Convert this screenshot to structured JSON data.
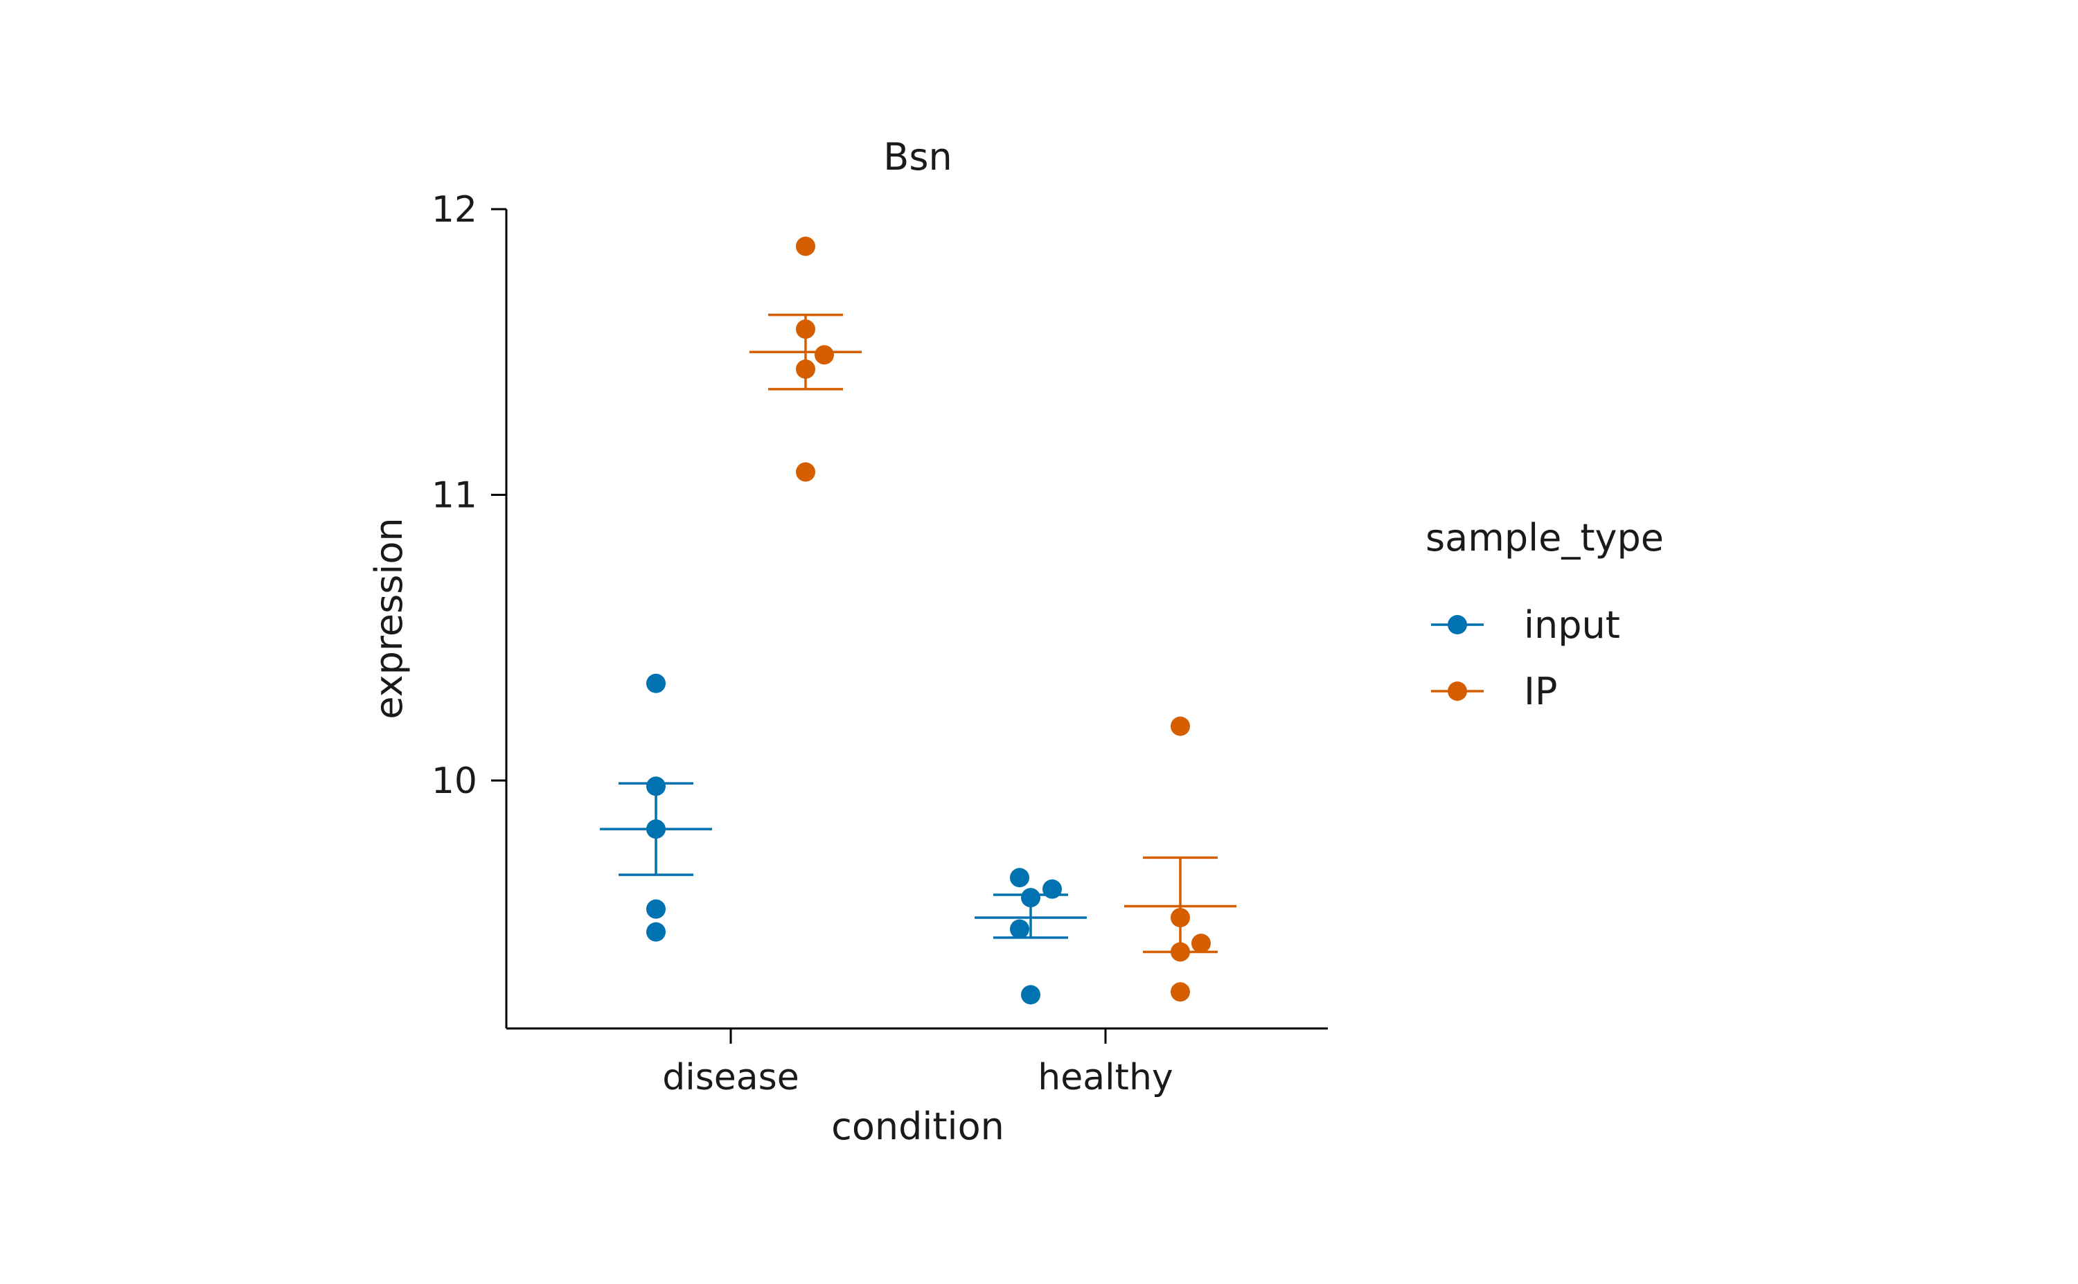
{
  "chart_data": {
    "type": "scatter",
    "title": "Bsn",
    "xlabel": "condition",
    "ylabel": "expression",
    "categories": [
      "disease",
      "healthy"
    ],
    "ylim": [
      9.13,
      12.0
    ],
    "yticks": [
      10,
      11,
      12
    ],
    "grid": false,
    "legend": {
      "title": "sample_type",
      "placement": "right"
    },
    "series": [
      {
        "name": "input",
        "color": "#0072B2",
        "groups": [
          {
            "category": "disease",
            "points": [
              10.34,
              9.98,
              9.83,
              9.55,
              9.47
            ],
            "mean": 9.83,
            "error": [
              9.67,
              9.99
            ]
          },
          {
            "category": "healthy",
            "points": [
              9.66,
              9.59,
              9.62,
              9.48,
              9.25
            ],
            "mean": 9.52,
            "error": [
              9.45,
              9.6
            ]
          }
        ]
      },
      {
        "name": "IP",
        "color": "#D55E00",
        "groups": [
          {
            "category": "disease",
            "points": [
              11.87,
              11.58,
              11.49,
              11.44,
              11.08
            ],
            "mean": 11.5,
            "error": [
              11.37,
              11.63
            ]
          },
          {
            "category": "healthy",
            "points": [
              10.19,
              9.52,
              9.43,
              9.4,
              9.26
            ],
            "mean": 9.56,
            "error": [
              9.4,
              9.73
            ]
          }
        ]
      }
    ]
  }
}
